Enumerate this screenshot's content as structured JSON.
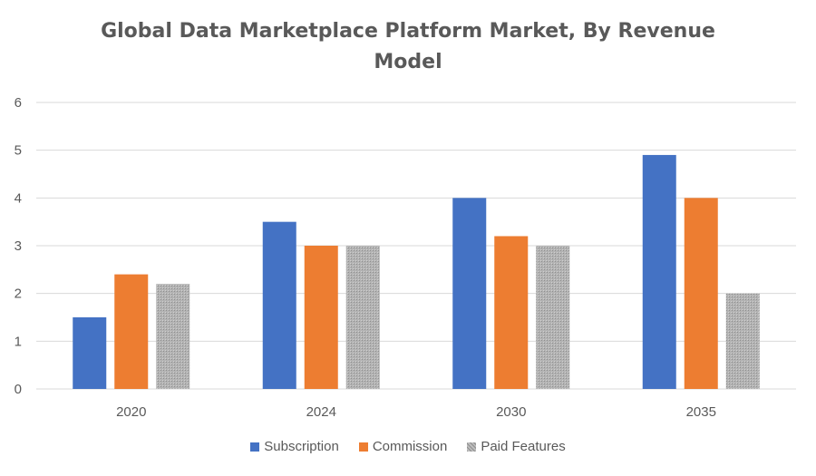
{
  "chart_data": {
    "type": "bar",
    "title_lines": [
      "Global Data Marketplace Platform Market, By Revenue",
      "Model"
    ],
    "categories": [
      "2020",
      "2024",
      "2030",
      "2035"
    ],
    "series": [
      {
        "name": "Subscription",
        "values": [
          1.5,
          3.5,
          4.0,
          4.9
        ],
        "color": "#4472C4",
        "pattern": "solid"
      },
      {
        "name": "Commission",
        "values": [
          2.4,
          3.0,
          3.2,
          4.0
        ],
        "color": "#ED7D31",
        "pattern": "solid"
      },
      {
        "name": "Paid Features",
        "values": [
          2.2,
          3.0,
          3.0,
          2.0
        ],
        "color": "#A5A5A5",
        "pattern": "hatched"
      }
    ],
    "ylim": [
      0,
      6
    ],
    "yticks": [
      "0",
      "1",
      "2",
      "3",
      "4",
      "5",
      "6"
    ],
    "grid": true,
    "legend_position": "bottom"
  }
}
